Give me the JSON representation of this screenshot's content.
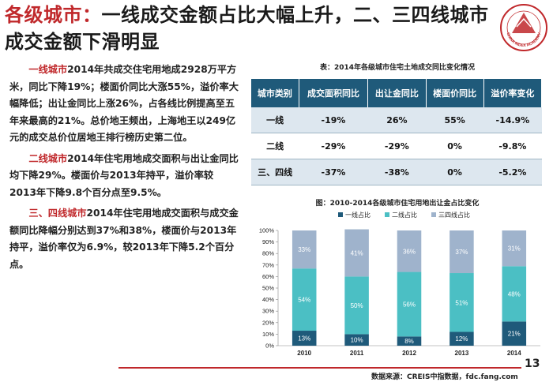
{
  "title": {
    "highlight": "各级城市：",
    "rest": "一线成交金额占比大幅上升，二、三四线城市成交金额下滑明显"
  },
  "logo": {
    "text": "CHINA INDEX ACADEMY"
  },
  "paragraphs": [
    {
      "label": "一线城市",
      "text": "2014年共成交住宅用地成2928万平方米，同比下降19%；楼面价同比大涨55%，溢价率大幅降低；出让金同比上涨26%，占各线比例提高至五年来最高的21%。总价地王频出，上海地王以249亿元的成交总价位居地王排行榜历史第二位。"
    },
    {
      "label": "二线城市",
      "text": "2014年住宅用地成交面积与出让金同比均下降29%。楼面价与2013年持平，溢价率较2013年下降9.8个百分点至9.5%。"
    },
    {
      "label": "三、四线城市",
      "text": "2014年住宅用地成交面积与成交金额同比降幅分别达到37%和38%，楼面价与2013年持平，溢价率仅为6.9%，较2013年下降5.2个百分点。"
    }
  ],
  "table": {
    "caption": "表：2014年各级城市住宅土地成交同比变化情况",
    "headers": [
      "城市类别",
      "成交面积同比",
      "出让金同比",
      "楼面价同比",
      "溢价率变化"
    ],
    "rows": [
      [
        "一线",
        "-19%",
        "26%",
        "55%",
        "-14.9%"
      ],
      [
        "二线",
        "-29%",
        "-29%",
        "0%",
        "-9.8%"
      ],
      [
        "三、四线",
        "-37%",
        "-38%",
        "0%",
        "-5.2%"
      ]
    ]
  },
  "chart_caption": "图：2010-2014各级城市住宅用地出让金占比变化",
  "chart_data": {
    "type": "bar",
    "stacked": true,
    "categories": [
      "2010",
      "2011",
      "2012",
      "2013",
      "2014"
    ],
    "series": [
      {
        "name": "一线占比",
        "values": [
          13,
          10,
          8,
          12,
          21
        ],
        "color": "#1f5a7a"
      },
      {
        "name": "二线占比",
        "values": [
          54,
          50,
          56,
          51,
          48
        ],
        "color": "#4bbfc4"
      },
      {
        "name": "三四线占比",
        "values": [
          33,
          41,
          36,
          37,
          31
        ],
        "color": "#9fb3cc"
      }
    ],
    "ylim": [
      0,
      100
    ],
    "yticks": [
      "0%",
      "10%",
      "20%",
      "30%",
      "40%",
      "50%",
      "60%",
      "70%",
      "80%",
      "90%",
      "100%"
    ],
    "legend": "top",
    "grid": false
  },
  "page_number": "13",
  "source": "数据来源：CREIS中指数据，fdc.fang.com"
}
